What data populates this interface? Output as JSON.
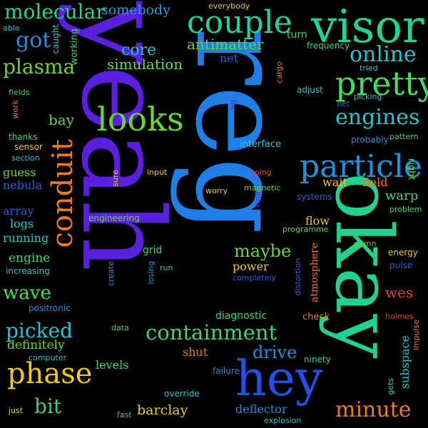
{
  "words": [
    {
      "text": "yeah",
      "color": "#5b1fe0"
    },
    {
      "text": "reg",
      "color": "#1e7fe6"
    },
    {
      "text": "okay",
      "color": "#1fd38f"
    },
    {
      "text": "visor",
      "color": "#1fd39b"
    },
    {
      "text": "hey",
      "color": "#2050e8"
    },
    {
      "text": "conduit",
      "color": "#f07a18"
    },
    {
      "text": "looks",
      "color": "#66d92a"
    },
    {
      "text": "particle",
      "color": "#1e90e0"
    },
    {
      "text": "couple",
      "color": "#1fd3a0"
    },
    {
      "text": "pretty",
      "color": "#3ee058"
    },
    {
      "text": "containment",
      "color": "#3ad675"
    },
    {
      "text": "phase",
      "color": "#f0c81e"
    },
    {
      "text": "minute",
      "color": "#f07a18"
    },
    {
      "text": "engines",
      "color": "#1ec8d0"
    },
    {
      "text": "online",
      "color": "#1ec8d0"
    },
    {
      "text": "molecular",
      "color": "#1fd39b"
    },
    {
      "text": "plasma",
      "color": "#66d92a"
    },
    {
      "text": "got",
      "color": "#1e90e0"
    },
    {
      "text": "core",
      "color": "#1ec8d0"
    },
    {
      "text": "simulation",
      "color": "#5be055"
    },
    {
      "text": "somebody",
      "color": "#1e9de0"
    },
    {
      "text": "antimatter",
      "color": "#66d92a"
    },
    {
      "text": "net",
      "color": "#2060e0"
    },
    {
      "text": "turn",
      "color": "#3ad675"
    },
    {
      "text": "frequency",
      "color": "#3ad675"
    },
    {
      "text": "everybody",
      "color": "#f0c81e"
    },
    {
      "text": "caught",
      "color": "#1ec8d0"
    },
    {
      "text": "working",
      "color": "#3ad675"
    },
    {
      "text": "able",
      "color": "#1ec8d0"
    },
    {
      "text": "cargo",
      "color": "#f07a18"
    },
    {
      "text": "tried",
      "color": "#1ec8d0"
    },
    {
      "text": "adjust",
      "color": "#1ec8d0"
    },
    {
      "text": "picking",
      "color": "#1ec8d0"
    },
    {
      "text": "bet",
      "color": "#2060e0"
    },
    {
      "text": "lot",
      "color": "#5b1fe0"
    },
    {
      "text": "fields",
      "color": "#3ad675"
    },
    {
      "text": "work",
      "color": "#f07a18"
    },
    {
      "text": "bay",
      "color": "#66d92a"
    },
    {
      "text": "thanks",
      "color": "#3ad675"
    },
    {
      "text": "sensor",
      "color": "#f0c81e"
    },
    {
      "text": "section",
      "color": "#1ec8d0"
    },
    {
      "text": "guess",
      "color": "#66d92a"
    },
    {
      "text": "nebula",
      "color": "#2060e0"
    },
    {
      "text": "interface",
      "color": "#1ec8d0"
    },
    {
      "text": "probably",
      "color": "#1e90e0"
    },
    {
      "text": "pattern",
      "color": "#3ad675"
    },
    {
      "text": "sure",
      "color": "#f0c81e"
    },
    {
      "text": "input",
      "color": "#f0c81e"
    },
    {
      "text": "going",
      "color": "#f04020"
    },
    {
      "text": "kind",
      "color": "#5b1fe0"
    },
    {
      "text": "wait",
      "color": "#f0c81e"
    },
    {
      "text": "field",
      "color": "#f07a18"
    },
    {
      "text": "right",
      "color": "#66d92a"
    },
    {
      "text": "worry",
      "color": "#f0c81e"
    },
    {
      "text": "magnetic",
      "color": "#66d92a"
    },
    {
      "text": "systems",
      "color": "#2060e0"
    },
    {
      "text": "warp",
      "color": "#3ad675"
    },
    {
      "text": "problem",
      "color": "#3ad675"
    },
    {
      "text": "array",
      "color": "#2060e0"
    },
    {
      "text": "logs",
      "color": "#1ec8d0"
    },
    {
      "text": "running",
      "color": "#1ec8d0"
    },
    {
      "text": "engineering",
      "color": "#66d92a"
    },
    {
      "text": "flow",
      "color": "#f0c81e"
    },
    {
      "text": "programme",
      "color": "#66d92a"
    },
    {
      "text": "damn",
      "color": "#66d92a"
    },
    {
      "text": "energy",
      "color": "#f0c81e"
    },
    {
      "text": "pulse",
      "color": "#2060e0"
    },
    {
      "text": "engine",
      "color": "#3ad675"
    },
    {
      "text": "increasing",
      "color": "#1ec8d0"
    },
    {
      "text": "grid",
      "color": "#3ad675"
    },
    {
      "text": "maybe",
      "color": "#66d92a"
    },
    {
      "text": "power",
      "color": "#f0c81e"
    },
    {
      "text": "completely",
      "color": "#2060e0"
    },
    {
      "text": "atmosphere",
      "color": "#f07a18"
    },
    {
      "text": "create",
      "color": "#1e90e0"
    },
    {
      "text": "losing",
      "color": "#1e90e0"
    },
    {
      "text": "run",
      "color": "#3ad675"
    },
    {
      "text": "distortion",
      "color": "#2060e0"
    },
    {
      "text": "wave",
      "color": "#3ee058"
    },
    {
      "text": "positronic",
      "color": "#1e90e0"
    },
    {
      "text": "diagnostic",
      "color": "#3ad675"
    },
    {
      "text": "check",
      "color": "#f07a18"
    },
    {
      "text": "wes",
      "color": "#f04020"
    },
    {
      "text": "holmes",
      "color": "#f04020"
    },
    {
      "text": "impulse",
      "color": "#f07a18"
    },
    {
      "text": "picked",
      "color": "#1ec8d0"
    },
    {
      "text": "data",
      "color": "#3ad675"
    },
    {
      "text": "definitely",
      "color": "#66d92a"
    },
    {
      "text": "computer",
      "color": "#1ec8d0"
    },
    {
      "text": "drive",
      "color": "#1e90e0"
    },
    {
      "text": "shut",
      "color": "#f07a18"
    },
    {
      "text": "subspace",
      "color": "#1ec8d0"
    },
    {
      "text": "ninety",
      "color": "#3ad675"
    },
    {
      "text": "levels",
      "color": "#3ad675"
    },
    {
      "text": "failure",
      "color": "#1e90e0"
    },
    {
      "text": "bit",
      "color": "#3ad675"
    },
    {
      "text": "override",
      "color": "#1ec8d0"
    },
    {
      "text": "deflector",
      "color": "#1e90e0"
    },
    {
      "text": "gets",
      "color": "#3ad675"
    },
    {
      "text": "just",
      "color": "#f0c81e"
    },
    {
      "text": "fast",
      "color": "#1ec8d0"
    },
    {
      "text": "barclay",
      "color": "#f0c81e"
    },
    {
      "text": "explosion",
      "color": "#1ec8d0"
    }
  ]
}
